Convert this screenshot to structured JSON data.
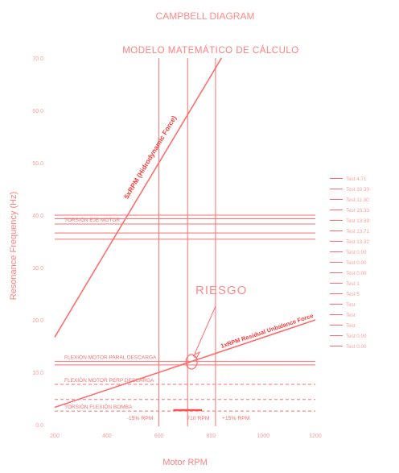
{
  "chart_data": {
    "type": "line",
    "title": "CAMPBELL DIAGRAM",
    "subtitle": "MODELO MATEMÁTICO DE CÁLCULO",
    "xlabel": "Motor RPM",
    "ylabel": "Resonance Frequency (Hz)",
    "xlim": [
      200,
      1200
    ],
    "ylim": [
      0,
      70
    ],
    "x_ticks": [
      "200",
      "400",
      "600",
      "800",
      "1000",
      "1200"
    ],
    "y_ticks": [
      "0.0",
      "10.0",
      "20.0",
      "30.0",
      "40.0",
      "50.0",
      "60.0",
      "70.0"
    ],
    "grid": false,
    "colors": {
      "main": "#ff6e6e",
      "light": "#ff9c9c"
    },
    "series": [
      {
        "name": "5xRPM (Hidrodynamic Force)",
        "x": [
          200,
          840
        ],
        "y": [
          16.7,
          70
        ]
      },
      {
        "name": "1xRPM Residual Unbalance Force",
        "x": [
          200,
          1200
        ],
        "y": [
          3.3,
          20
        ]
      }
    ],
    "vertical_lines": [
      {
        "x": 600,
        "label": "-15% RPM"
      },
      {
        "x": 710,
        "label": "710 RPM"
      },
      {
        "x": 817,
        "label": "+15% RPM"
      }
    ],
    "horizontal_lines": [
      {
        "y": 40.0,
        "label": ""
      },
      {
        "y": 39.3,
        "label": ""
      },
      {
        "y": 38.3,
        "label": "TORSIÓN EJE MOTOR"
      },
      {
        "y": 36.6,
        "label": ""
      },
      {
        "y": 35.4,
        "label": ""
      },
      {
        "y": 12.1,
        "label": "FLEXIÓN MOTOR PARAL DESCARGA"
      },
      {
        "y": 11.4,
        "label": ""
      },
      {
        "y": 7.7,
        "label": "FLEXIÓN MOTOR PERP DESCARGA"
      },
      {
        "y": 4.8,
        "label": ""
      },
      {
        "y": 2.6,
        "label": "TORSIÓN FLEXIÓN BOMBA"
      }
    ],
    "legend": [
      {
        "label": "Test 4.71",
        "y": 47.0
      },
      {
        "label": "Test 10.30",
        "y": 45.0
      },
      {
        "label": "Test 11.30",
        "y": 43.0
      },
      {
        "label": "Test 15.33",
        "y": 41.0
      },
      {
        "label": "Test 13.39",
        "y": 39.0
      },
      {
        "label": "Test 13.71",
        "y": 37.0
      },
      {
        "label": "Test 13.32",
        "y": 35.0
      },
      {
        "label": "Test 0.00",
        "y": 33.0
      },
      {
        "label": "Test 0.00",
        "y": 31.0
      },
      {
        "label": "Test 0.00",
        "y": 29.0
      },
      {
        "label": "Test 1",
        "y": 27.0
      },
      {
        "label": "Test 5",
        "y": 25.0
      },
      {
        "label": "Test",
        "y": 23.0
      },
      {
        "label": "Test",
        "y": 21.0
      },
      {
        "label": "Test",
        "y": 19.0
      },
      {
        "label": "Test 0.00",
        "y": 17.0
      },
      {
        "label": "Test 0.00",
        "y": 15.0
      }
    ],
    "annotations": {
      "risk_label": "RIESGO",
      "risk_point": {
        "x": 725,
        "y": 12.0
      }
    }
  }
}
